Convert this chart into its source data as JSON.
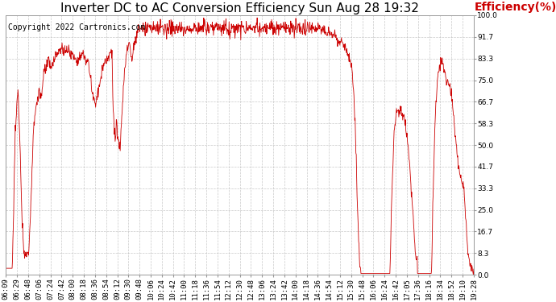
{
  "title": "Inverter DC to AC Conversion Efficiency Sun Aug 28 19:32",
  "copyright": "Copyright 2022 Cartronics.com",
  "ylabel": "Efficiency(%)",
  "ylabel_color": "#cc0000",
  "line_color": "#cc0000",
  "background_color": "#ffffff",
  "grid_color": "#bbbbbb",
  "ylim": [
    0.0,
    100.0
  ],
  "yticks": [
    0.0,
    8.3,
    16.7,
    25.0,
    33.3,
    41.7,
    50.0,
    58.3,
    66.7,
    75.0,
    83.3,
    91.7,
    100.0
  ],
  "x_labels": [
    "06:09",
    "06:29",
    "06:48",
    "07:06",
    "07:24",
    "07:42",
    "08:00",
    "08:18",
    "08:36",
    "08:54",
    "09:12",
    "09:30",
    "09:48",
    "10:06",
    "10:24",
    "10:42",
    "11:00",
    "11:18",
    "11:36",
    "11:54",
    "12:12",
    "12:30",
    "12:48",
    "13:06",
    "13:24",
    "13:42",
    "14:00",
    "14:18",
    "14:36",
    "14:54",
    "15:12",
    "15:30",
    "15:48",
    "16:06",
    "16:24",
    "16:42",
    "17:05",
    "17:36",
    "18:16",
    "18:34",
    "18:52",
    "19:10",
    "19:28"
  ],
  "title_fontsize": 11,
  "copyright_fontsize": 7,
  "ylabel_fontsize": 10,
  "tick_fontsize": 6.5
}
